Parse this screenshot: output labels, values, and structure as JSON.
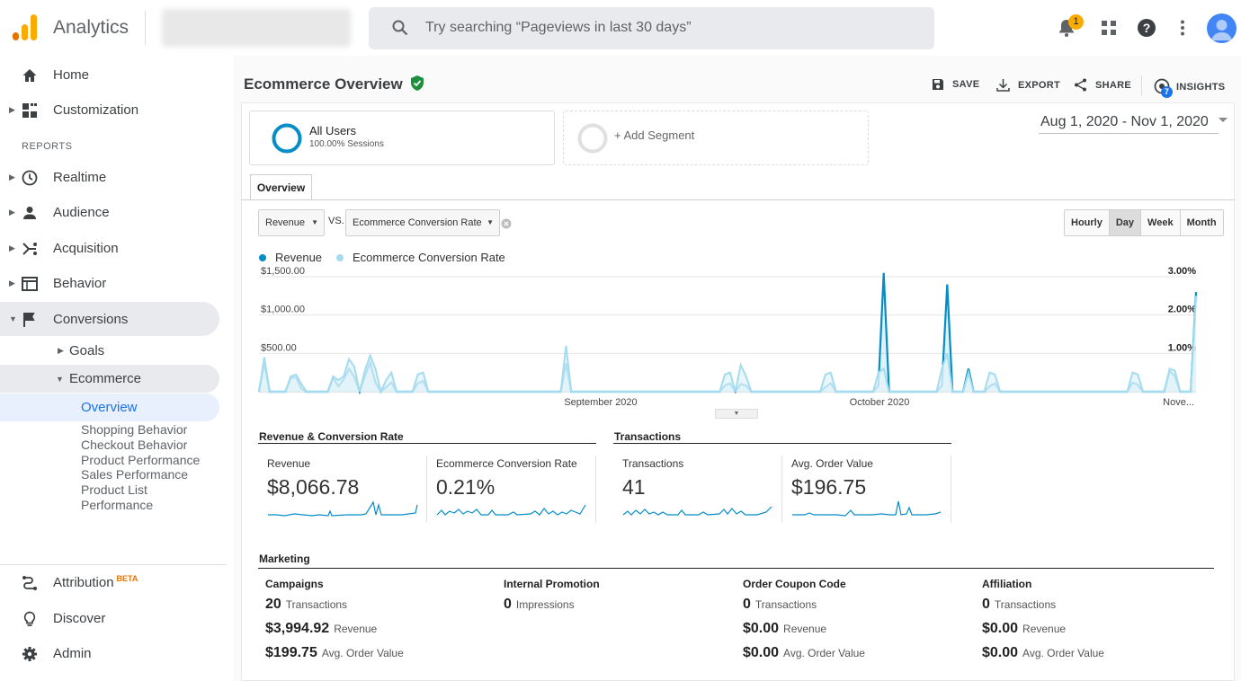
{
  "app": {
    "brand": "Analytics"
  },
  "search": {
    "placeholder": "Try searching “Pageviews in last 30 days”"
  },
  "header": {
    "notification_count": "1"
  },
  "sidebar": {
    "home": "Home",
    "customization": "Customization",
    "reports_label": "REPORTS",
    "realtime": "Realtime",
    "audience": "Audience",
    "acquisition": "Acquisition",
    "behavior": "Behavior",
    "conversions": "Conversions",
    "goals": "Goals",
    "ecommerce": "Ecommerce",
    "overview": "Overview",
    "ecommerce_sub": [
      "Shopping Behavior",
      "Checkout Behavior",
      "Product Performance",
      "Sales Performance",
      "Product List Performance"
    ],
    "attribution": "Attribution",
    "beta": "BETA",
    "discover": "Discover",
    "admin": "Admin"
  },
  "page": {
    "title": "Ecommerce Overview",
    "actions": {
      "save": "SAVE",
      "export": "EXPORT",
      "share": "SHARE",
      "insights": "INSIGHTS",
      "insights_count": "7"
    },
    "segments": {
      "all_users": "All Users",
      "all_users_sub": "100.00% Sessions",
      "add_segment": "+ Add Segment"
    },
    "date_range": "Aug 1, 2020 - Nov 1, 2020",
    "tab": "Overview",
    "metric_select_1": "Revenue",
    "vs": "VS.",
    "metric_select_2": "Ecommerce Conversion Rate",
    "granularity": [
      "Hourly",
      "Day",
      "Week",
      "Month"
    ]
  },
  "chart_data": {
    "type": "area",
    "series": [
      {
        "name": "Revenue",
        "color": "#058dc7",
        "axis": "left",
        "values": [
          0,
          380,
          0,
          0,
          0,
          0,
          180,
          190,
          40,
          0,
          0,
          0,
          0,
          0,
          180,
          70,
          160,
          300,
          190,
          0,
          200,
          380,
          120,
          0,
          60,
          120,
          0,
          0,
          0,
          0,
          110,
          140,
          0,
          0,
          0,
          0,
          0,
          0,
          0,
          0,
          0,
          0,
          0,
          0,
          0,
          0,
          0,
          0,
          0,
          0,
          0,
          0,
          0,
          0,
          0,
          0,
          0,
          0,
          370,
          0,
          0,
          0,
          0,
          0,
          0,
          0,
          0,
          0,
          0,
          0,
          0,
          0,
          0,
          0,
          0,
          0,
          0,
          0,
          0,
          0,
          0,
          0,
          0,
          0,
          0,
          0,
          0,
          0,
          80,
          110,
          0,
          100,
          80,
          0,
          0,
          0,
          0,
          0,
          0,
          0,
          0,
          0,
          0,
          0,
          0,
          0,
          0,
          60,
          110,
          0,
          0,
          0,
          0,
          0,
          0,
          0,
          0,
          80,
          1550,
          0,
          0,
          0,
          0,
          0,
          0,
          0,
          0,
          0,
          0,
          80,
          1400,
          0,
          0,
          0,
          300,
          0,
          0,
          0,
          70,
          110,
          0,
          0,
          0,
          0,
          0,
          0,
          0,
          0,
          0,
          0,
          0,
          0,
          0,
          0,
          0,
          0,
          0,
          0,
          0,
          0,
          0,
          0,
          0,
          0,
          0,
          120,
          90,
          0,
          0,
          0,
          0,
          0,
          270,
          200,
          0,
          0,
          0,
          1300
        ]
      },
      {
        "name": "Ecommerce Conversion Rate",
        "color": "#a4dcef",
        "axis": "right",
        "values": [
          0,
          0.9,
          0,
          0,
          0,
          0,
          0.4,
          0.45,
          0.2,
          0,
          0,
          0,
          0,
          0,
          0.4,
          0.3,
          0.4,
          0.85,
          0.65,
          0,
          0.55,
          0.95,
          0.6,
          0,
          0.3,
          0.5,
          0,
          0,
          0,
          0,
          0.45,
          0.5,
          0,
          0,
          0,
          0,
          0,
          0,
          0,
          0,
          0,
          0,
          0,
          0,
          0,
          0,
          0,
          0,
          0,
          0,
          0,
          0,
          0,
          0,
          0,
          0,
          0,
          0,
          1.2,
          0,
          0,
          0,
          0,
          0,
          0,
          0,
          0,
          0,
          0,
          0,
          0,
          0,
          0,
          0,
          0,
          0,
          0,
          0,
          0,
          0,
          0,
          0,
          0,
          0,
          0,
          0,
          0,
          0,
          0.45,
          0.5,
          0,
          0.7,
          0.4,
          0,
          0,
          0,
          0,
          0,
          0,
          0,
          0,
          0,
          0,
          0,
          0,
          0,
          0,
          0.45,
          0.5,
          0,
          0,
          0,
          0,
          0,
          0,
          0,
          0,
          0.5,
          0.6,
          0,
          0,
          0,
          0,
          0,
          0,
          0,
          0,
          0,
          0,
          0.6,
          1.0,
          0,
          0,
          0,
          0.5,
          0,
          0,
          0,
          0.5,
          0.45,
          0,
          0,
          0,
          0,
          0,
          0,
          0,
          0,
          0,
          0,
          0,
          0,
          0,
          0,
          0,
          0,
          0,
          0,
          0,
          0,
          0,
          0,
          0,
          0,
          0,
          0.5,
          0.45,
          0,
          0,
          0,
          0,
          0,
          0.6,
          0.55,
          0,
          0,
          0,
          2.5
        ]
      }
    ],
    "x_ticks": [
      "September 2020",
      "October 2020",
      "Nove..."
    ],
    "y_left_ticks": [
      "$500.00",
      "$1,000.00",
      "$1,500.00"
    ],
    "y_right_ticks": [
      "1.00%",
      "2.00%",
      "3.00%"
    ],
    "ylim_left": [
      0,
      1500
    ],
    "ylim_right": [
      0,
      3
    ],
    "legend_position": "top-left"
  },
  "revenue_section": {
    "title": "Revenue & Conversion Rate",
    "metrics": [
      {
        "label": "Revenue",
        "value": "$8,066.78"
      },
      {
        "label": "Ecommerce Conversion Rate",
        "value": "0.21%"
      }
    ]
  },
  "transactions_section": {
    "title": "Transactions",
    "metrics": [
      {
        "label": "Transactions",
        "value": "41"
      },
      {
        "label": "Avg. Order Value",
        "value": "$196.75"
      }
    ]
  },
  "marketing": {
    "title": "Marketing",
    "columns": [
      {
        "head": "Campaigns",
        "rows": [
          {
            "v": "20",
            "l": "Transactions"
          },
          {
            "v": "$3,994.92",
            "l": "Revenue"
          },
          {
            "v": "$199.75",
            "l": "Avg. Order Value"
          }
        ]
      },
      {
        "head": "Internal Promotion",
        "rows": [
          {
            "v": "0",
            "l": "Impressions"
          }
        ]
      },
      {
        "head": "Order Coupon Code",
        "rows": [
          {
            "v": "0",
            "l": "Transactions"
          },
          {
            "v": "$0.00",
            "l": "Revenue"
          },
          {
            "v": "$0.00",
            "l": "Avg. Order Value"
          }
        ]
      },
      {
        "head": "Affiliation",
        "rows": [
          {
            "v": "0",
            "l": "Transactions"
          },
          {
            "v": "$0.00",
            "l": "Revenue"
          },
          {
            "v": "$0.00",
            "l": "Avg. Order Value"
          }
        ]
      }
    ]
  }
}
